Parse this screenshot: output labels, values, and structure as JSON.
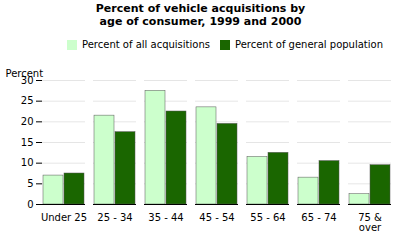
{
  "chart_data": {
    "type": "bar",
    "title": "Percent of vehicle acquisitions by\nage of consumer, 1999 and 2000",
    "categories": [
      "Under 25",
      "25 - 34",
      "35 - 44",
      "45 - 54",
      "55 - 64",
      "65 - 74",
      "75 &\nover"
    ],
    "series": [
      {
        "name": "Percent of all acquisitions",
        "color": "#ccffcc",
        "values": [
          7.0,
          21.5,
          27.5,
          23.5,
          11.5,
          6.5,
          2.5
        ]
      },
      {
        "name": "Percent of general population",
        "color": "#1a6600",
        "values": [
          7.5,
          17.5,
          22.5,
          19.5,
          12.5,
          10.5,
          9.5
        ]
      }
    ],
    "ylabel": "Percent",
    "ylim": [
      0,
      30
    ],
    "yticks": [
      0,
      5,
      10,
      15,
      20,
      25,
      30
    ],
    "grid": true,
    "legend": "upper right"
  }
}
